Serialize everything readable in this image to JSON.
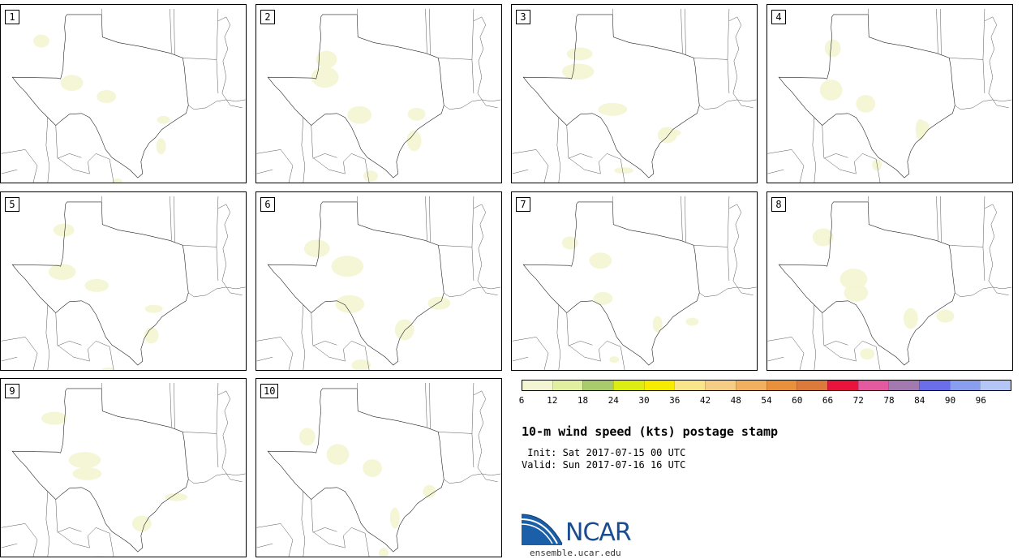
{
  "panels": [
    {
      "number": "1"
    },
    {
      "number": "2"
    },
    {
      "number": "3"
    },
    {
      "number": "4"
    },
    {
      "number": "5"
    },
    {
      "number": "6"
    },
    {
      "number": "7"
    },
    {
      "number": "8"
    },
    {
      "number": "9"
    },
    {
      "number": "10"
    }
  ],
  "colorbar": {
    "colors": [
      "#f3f5d3",
      "#e0f0a0",
      "#a9cb6b",
      "#dced13",
      "#f7ec00",
      "#fbe58a",
      "#f5cd84",
      "#f0b060",
      "#e8913c",
      "#db7a3a",
      "#e8143c",
      "#e45aa0",
      "#a27ab0",
      "#6a6ee8",
      "#8a9ef0",
      "#b4c6f6"
    ],
    "labels": [
      "6",
      "12",
      "18",
      "24",
      "30",
      "36",
      "42",
      "48",
      "54",
      "60",
      "66",
      "72",
      "78",
      "84",
      "90",
      "96"
    ]
  },
  "title": "10-m wind speed (kts) postage stamp",
  "init_line": " Init: Sat 2017-07-15 00 UTC",
  "valid_line": "Valid: Sun 2017-07-16 16 UTC",
  "logo": {
    "text": "NCAR",
    "url": "ensemble.ucar.edu"
  }
}
